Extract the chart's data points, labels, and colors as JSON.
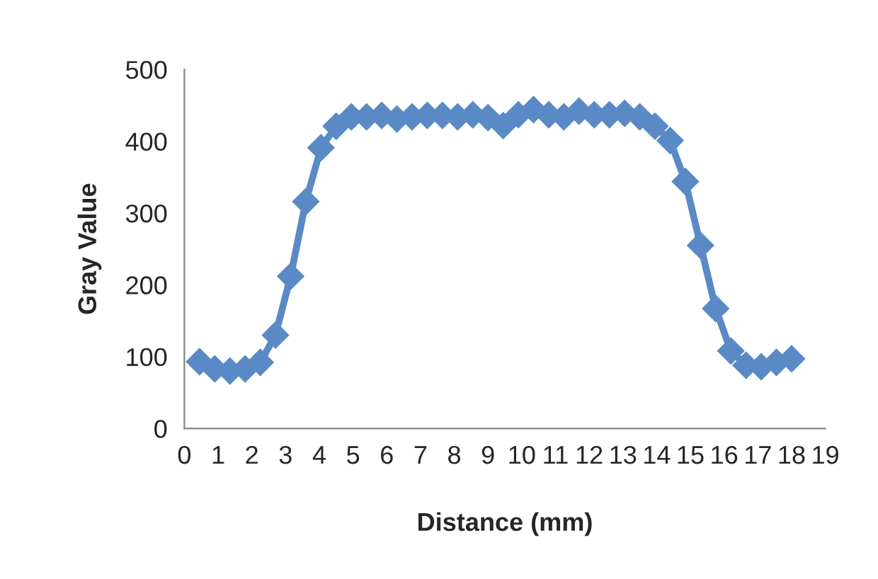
{
  "chart_data": {
    "type": "line",
    "xlabel": "Distance (mm)",
    "ylabel": "Gray Value",
    "x": [
      0.45,
      0.9,
      1.35,
      1.8,
      2.25,
      2.7,
      3.15,
      3.6,
      4.05,
      4.5,
      4.95,
      5.4,
      5.85,
      6.3,
      6.75,
      7.2,
      7.65,
      8.1,
      8.55,
      9.0,
      9.45,
      9.9,
      10.35,
      10.8,
      11.25,
      11.7,
      12.15,
      12.6,
      13.05,
      13.5,
      13.95,
      14.4,
      14.85,
      15.3,
      15.75,
      16.2,
      16.65,
      17.1,
      17.55,
      18.0
    ],
    "series": [
      {
        "color": "#5a8ac6",
        "values": [
          93,
          83,
          80,
          83,
          92,
          130,
          212,
          316,
          391,
          421,
          434,
          434,
          436,
          431,
          434,
          436,
          436,
          434,
          437,
          433,
          422,
          437,
          444,
          437,
          434,
          442,
          437,
          437,
          439,
          434,
          421,
          401,
          344,
          255,
          167,
          108,
          88,
          86,
          92,
          97
        ]
      }
    ],
    "xlim": [
      0,
      19
    ],
    "xticks": [
      0,
      1,
      2,
      3,
      4,
      5,
      6,
      7,
      8,
      9,
      10,
      11,
      12,
      13,
      14,
      15,
      16,
      17,
      18,
      19
    ],
    "ylim": [
      0,
      500
    ],
    "yticks": [
      0,
      100,
      200,
      300,
      400,
      500
    ],
    "marker": "diamond",
    "line_style": "solid",
    "grid": false,
    "legend": false
  }
}
